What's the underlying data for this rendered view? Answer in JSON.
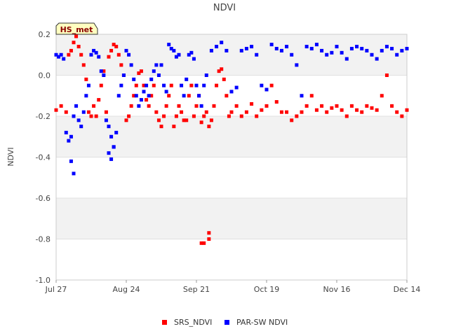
{
  "chart_data": {
    "type": "scatter",
    "title": "NDVI",
    "ylabel": "NDVI",
    "xlabel": "",
    "badge": "HS_met",
    "ylim": [
      -1.0,
      0.2
    ],
    "yticks": [
      "0.2",
      "0.0",
      "-0.2",
      "-0.4",
      "-0.6",
      "-0.8",
      "-1.0"
    ],
    "ytick_values": [
      0.2,
      0.0,
      -0.2,
      -0.4,
      -0.6,
      -0.8,
      -1.0
    ],
    "xlim": [
      "Jul 27",
      "Dec 14"
    ],
    "xticks": [
      "Jul 27",
      "Aug 24",
      "Sep 21",
      "Oct 19",
      "Nov 16",
      "Dec 14"
    ],
    "xtick_days": [
      0,
      28,
      56,
      84,
      112,
      140
    ],
    "grid": true,
    "legend_position": "bottom",
    "series": [
      {
        "name": "SRS_NDVI",
        "color": "#ff0000",
        "x": [
          0,
          2,
          4,
          5,
          6,
          7,
          8,
          9,
          10,
          11,
          12,
          13,
          14,
          15,
          16,
          17,
          18,
          19,
          20,
          21,
          22,
          23,
          24,
          25,
          26,
          27,
          28,
          29,
          30,
          31,
          32,
          33,
          34,
          35,
          36,
          37,
          38,
          39,
          40,
          41,
          42,
          43,
          44,
          45,
          46,
          47,
          48,
          49,
          50,
          51,
          52,
          53,
          54,
          55,
          56,
          57,
          58,
          59,
          60,
          61,
          62,
          63,
          64,
          65,
          66,
          67,
          68,
          69,
          70,
          72,
          74,
          76,
          78,
          80,
          82,
          84,
          86,
          88,
          90,
          92,
          94,
          96,
          98,
          100,
          102,
          104,
          106,
          108,
          110,
          112,
          114,
          116,
          118,
          120,
          122,
          124,
          126,
          128,
          130,
          132,
          134,
          136,
          138,
          140,
          58,
          59,
          61,
          61
        ],
        "y": [
          -0.17,
          -0.15,
          -0.18,
          0.1,
          0.12,
          0.16,
          0.19,
          0.14,
          0.1,
          0.05,
          -0.02,
          -0.18,
          -0.2,
          -0.15,
          -0.2,
          -0.12,
          -0.05,
          0.02,
          -0.18,
          0.09,
          0.12,
          0.15,
          0.14,
          0.1,
          0.05,
          0.0,
          -0.22,
          -0.2,
          -0.15,
          -0.1,
          -0.05,
          0.01,
          0.02,
          -0.05,
          -0.12,
          -0.15,
          -0.1,
          -0.05,
          -0.18,
          -0.22,
          -0.25,
          -0.2,
          -0.15,
          -0.1,
          -0.05,
          -0.25,
          -0.2,
          -0.15,
          -0.18,
          -0.22,
          -0.22,
          -0.1,
          -0.05,
          -0.2,
          -0.15,
          -0.1,
          -0.23,
          -0.2,
          -0.18,
          -0.25,
          -0.22,
          -0.15,
          -0.05,
          0.02,
          0.03,
          -0.02,
          -0.1,
          -0.2,
          -0.18,
          -0.15,
          -0.2,
          -0.18,
          -0.14,
          -0.2,
          -0.17,
          -0.15,
          -0.05,
          -0.13,
          -0.18,
          -0.18,
          -0.22,
          -0.2,
          -0.18,
          -0.15,
          -0.1,
          -0.17,
          -0.15,
          -0.18,
          -0.16,
          -0.15,
          -0.17,
          -0.2,
          -0.15,
          -0.17,
          -0.18,
          -0.15,
          -0.16,
          -0.17,
          -0.1,
          0.0,
          -0.15,
          -0.18,
          -0.2,
          -0.17,
          -0.82,
          -0.82,
          -0.8,
          -0.77
        ]
      },
      {
        "name": "PAR-SW NDVI",
        "color": "#0000ff",
        "x": [
          0,
          1,
          2,
          3,
          4,
          5,
          6,
          7,
          8,
          9,
          10,
          11,
          12,
          13,
          14,
          15,
          16,
          17,
          18,
          19,
          20,
          21,
          22,
          23,
          24,
          25,
          26,
          27,
          28,
          29,
          30,
          31,
          32,
          33,
          34,
          35,
          36,
          37,
          38,
          39,
          40,
          41,
          42,
          43,
          44,
          45,
          46,
          47,
          48,
          49,
          50,
          51,
          52,
          53,
          54,
          55,
          56,
          57,
          58,
          59,
          60,
          62,
          64,
          66,
          68,
          70,
          72,
          74,
          76,
          78,
          80,
          82,
          84,
          86,
          88,
          90,
          92,
          94,
          96,
          98,
          100,
          102,
          104,
          106,
          108,
          110,
          112,
          114,
          116,
          118,
          120,
          122,
          124,
          126,
          128,
          130,
          132,
          134,
          136,
          138,
          140,
          6,
          7,
          21,
          22,
          23
        ],
        "y": [
          0.1,
          0.09,
          0.1,
          0.08,
          -0.28,
          -0.32,
          -0.3,
          -0.2,
          -0.15,
          -0.22,
          -0.25,
          -0.18,
          -0.1,
          -0.05,
          0.1,
          0.12,
          0.11,
          0.09,
          0.02,
          0.0,
          -0.22,
          -0.25,
          -0.3,
          -0.35,
          -0.28,
          -0.1,
          -0.05,
          0.0,
          0.12,
          0.1,
          0.05,
          -0.02,
          -0.1,
          -0.15,
          -0.12,
          -0.08,
          -0.05,
          -0.1,
          -0.02,
          0.02,
          0.05,
          0.0,
          0.05,
          -0.05,
          -0.08,
          0.15,
          0.13,
          0.12,
          0.09,
          0.1,
          -0.05,
          -0.1,
          -0.02,
          0.1,
          0.11,
          0.08,
          -0.05,
          -0.1,
          -0.15,
          -0.05,
          0.0,
          0.12,
          0.14,
          0.16,
          0.12,
          -0.08,
          -0.06,
          0.12,
          0.13,
          0.14,
          0.1,
          -0.05,
          -0.07,
          0.15,
          0.13,
          0.12,
          0.14,
          0.1,
          0.05,
          -0.1,
          0.14,
          0.13,
          0.15,
          0.12,
          0.1,
          0.11,
          0.14,
          0.11,
          0.08,
          0.13,
          0.14,
          0.13,
          0.12,
          0.1,
          0.08,
          0.12,
          0.14,
          0.13,
          0.1,
          0.12,
          0.13,
          -0.42,
          -0.48,
          -0.38,
          -0.41,
          -0.35
        ]
      }
    ]
  }
}
